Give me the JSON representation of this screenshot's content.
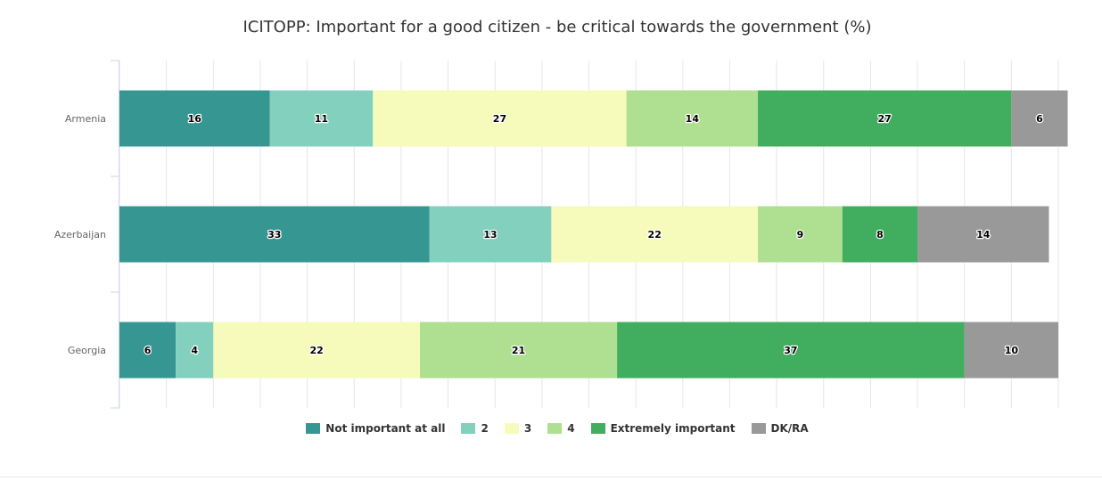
{
  "chart_data": {
    "type": "bar",
    "orientation": "horizontal",
    "stacked": true,
    "title": "ICITOPP: Important for a good citizen - be critical towards the government (%)",
    "categories": [
      "Armenia",
      "Azerbaijan",
      "Georgia"
    ],
    "series": [
      {
        "name": "Not important at all",
        "color": "#369792",
        "values": [
          16,
          33,
          6
        ]
      },
      {
        "name": "2",
        "color": "#82d0bd",
        "values": [
          11,
          13,
          4
        ]
      },
      {
        "name": "3",
        "color": "#f6fbbb",
        "values": [
          27,
          22,
          22
        ]
      },
      {
        "name": "4",
        "color": "#afdf90",
        "values": [
          14,
          9,
          21
        ]
      },
      {
        "name": "Extremely important",
        "color": "#41ad5e",
        "values": [
          27,
          8,
          37
        ]
      },
      {
        "name": "DK/RA",
        "color": "#999999",
        "values": [
          6,
          14,
          10
        ]
      }
    ],
    "xlim": [
      0,
      100
    ],
    "grid": true,
    "legend_position": "bottom"
  }
}
